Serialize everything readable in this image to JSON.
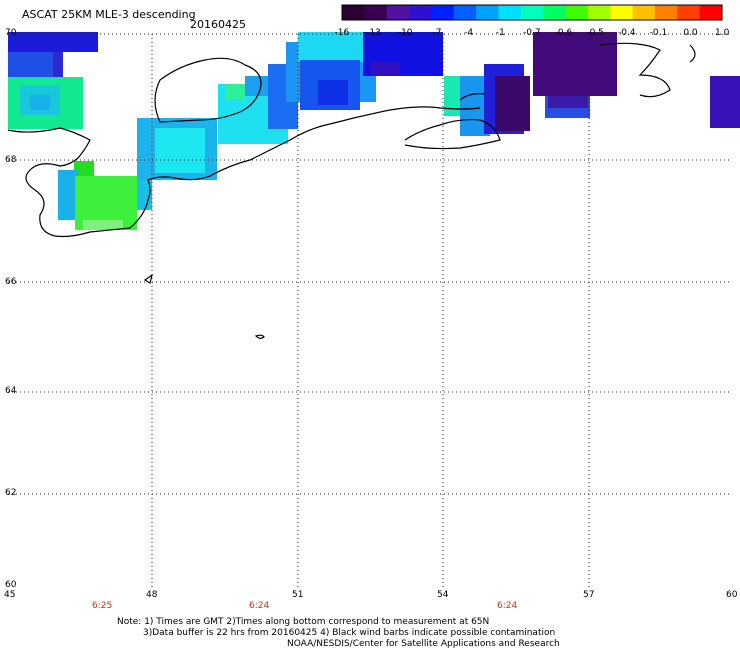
{
  "header": {
    "title": "ASCAT 25KM MLE-3 descending",
    "date": "20160425"
  },
  "colorbar": {
    "labels": [
      "-16",
      "-13",
      "-10",
      "-7",
      "-4",
      "-1",
      "-0.7",
      "-0.6",
      "-0.5",
      "-0.4",
      "-0.1",
      "0.0",
      "1.0"
    ],
    "colors": [
      "#2a0030",
      "#3a0050",
      "#5010a0",
      "#3010d0",
      "#0020ff",
      "#0060ff",
      "#00a0ff",
      "#00e0ff",
      "#00ffc0",
      "#00ff60",
      "#40ff00",
      "#a0ff00",
      "#ffff00",
      "#ffc000",
      "#ff8000",
      "#ff4000",
      "#ff0000"
    ]
  },
  "axes": {
    "lat_labels": [
      "70",
      "68",
      "66",
      "64",
      "62",
      "60"
    ],
    "lon_labels": [
      "45",
      "48",
      "51",
      "54",
      "57",
      "60"
    ]
  },
  "times": [
    "6:25",
    "6:24",
    "6:24"
  ],
  "notes": {
    "line1": "Note: 1) Times are GMT 2)Times along bottom correspond to measurement at 65N",
    "line2": "3)Data buffer is 22 hrs from 20160425 4) Black wind barbs indicate possible contamination",
    "line3": "NOAA/NESDIS/Center for Satellite Applications and Research"
  }
}
